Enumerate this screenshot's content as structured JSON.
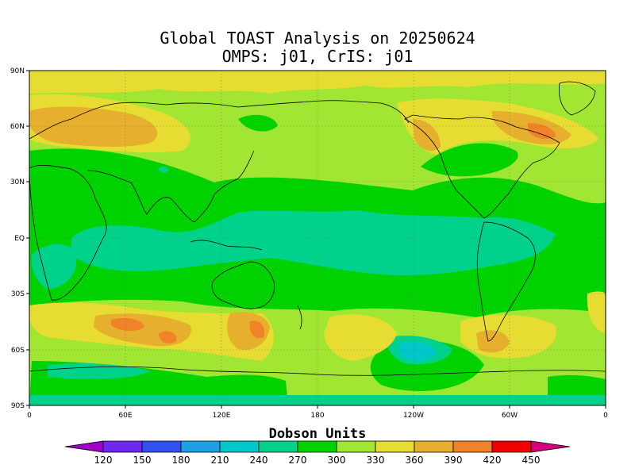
{
  "title": {
    "line1": "Global TOAST Analysis on 20250624",
    "line2": "OMPS: j01, CrIS: j01"
  },
  "axes": {
    "lat_labels": [
      "90N",
      "60N",
      "30N",
      "EQ",
      "30S",
      "60S",
      "90S"
    ],
    "lon_labels": [
      "0",
      "60E",
      "120E",
      "180",
      "120W",
      "60W",
      "0"
    ]
  },
  "colorbar": {
    "title": "Dobson Units",
    "levels": [
      120,
      150,
      180,
      210,
      240,
      270,
      300,
      330,
      360,
      390,
      420,
      450
    ],
    "colors": [
      "#a000c8",
      "#6e28f0",
      "#3250f0",
      "#1ea0e6",
      "#00c8c8",
      "#00d28c",
      "#00d200",
      "#a0e632",
      "#e6dc32",
      "#e6af2d",
      "#f08228",
      "#f00000",
      "#d2007d"
    ]
  },
  "colors": {
    "background": "#ffffff",
    "coast": "#000000",
    "grid": "#6a6a6a"
  }
}
